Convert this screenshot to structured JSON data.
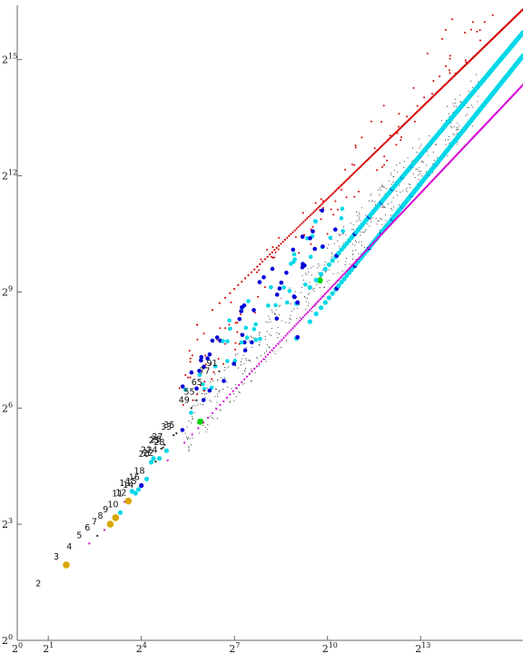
{
  "chart_data": {
    "type": "scatter",
    "title": "",
    "xlabel": "",
    "ylabel": "",
    "log_base": 2,
    "xlim": [
      0,
      16.3
    ],
    "ylim": [
      0,
      16.4
    ],
    "x_ticks": [
      {
        "exp": 0,
        "base": "2",
        "sup": "0"
      },
      {
        "exp": 1,
        "base": "2",
        "sup": "1"
      },
      {
        "exp": 4,
        "base": "2",
        "sup": "4"
      },
      {
        "exp": 7,
        "base": "2",
        "sup": "7"
      },
      {
        "exp": 10,
        "base": "2",
        "sup": "10"
      },
      {
        "exp": 13,
        "base": "2",
        "sup": "13"
      }
    ],
    "y_ticks": [
      {
        "exp": 0,
        "base": "2",
        "sup": "0"
      },
      {
        "exp": 3,
        "base": "2",
        "sup": "3"
      },
      {
        "exp": 6,
        "base": "2",
        "sup": "6"
      },
      {
        "exp": 9,
        "base": "2",
        "sup": "9"
      },
      {
        "exp": 12,
        "base": "2",
        "sup": "12"
      },
      {
        "exp": 15,
        "base": "2",
        "sup": "15"
      }
    ],
    "colors": {
      "red": "#d40000",
      "magenta": "#d400d4",
      "blue": "#0000d8",
      "cyan": "#00d8e8",
      "gold": "#d8a800",
      "green": "#00d800",
      "black": "#222222"
    },
    "lines": [
      {
        "color": "red",
        "from": [
          5.8,
          8.15
        ],
        "to": [
          16.3,
          16.3
        ],
        "marker": "dot"
      },
      {
        "color": "cyan",
        "from": [
          9.0,
          8.7
        ],
        "to": [
          16.3,
          15.7
        ],
        "marker": "circle"
      },
      {
        "color": "cyan",
        "from": [
          9.0,
          7.8
        ],
        "to": [
          16.3,
          15.1
        ],
        "marker": "circle"
      },
      {
        "color": "magenta",
        "from": [
          4.85,
          4.65
        ],
        "to": [
          16.3,
          14.35
        ],
        "marker": "dot"
      }
    ],
    "points": [
      {
        "label": "2",
        "x": 1.0,
        "y": 1.25,
        "color": "",
        "marker": "none"
      },
      {
        "label": "3",
        "x": 1.58,
        "y": 1.95,
        "color": "gold",
        "marker": "circle"
      },
      {
        "label": "4",
        "x": 2.0,
        "y": 2.2,
        "color": "",
        "marker": "none"
      },
      {
        "label": "5",
        "x": 2.32,
        "y": 2.5,
        "color": "magenta",
        "marker": "dot"
      },
      {
        "label": "6",
        "x": 2.58,
        "y": 2.7,
        "color": "black",
        "marker": "dot"
      },
      {
        "label": "7",
        "x": 2.81,
        "y": 2.85,
        "color": "magenta",
        "marker": "dot"
      },
      {
        "label": "8",
        "x": 3.0,
        "y": 3.0,
        "color": "gold",
        "marker": "circle"
      },
      {
        "label": "9",
        "x": 3.17,
        "y": 3.17,
        "color": "gold",
        "marker": "circle"
      },
      {
        "label": "10",
        "x": 3.32,
        "y": 3.3,
        "color": "cyan",
        "marker": "circle"
      },
      {
        "label": "11",
        "x": 3.46,
        "y": 3.58,
        "color": "magenta",
        "marker": "dot"
      },
      {
        "label": "12",
        "x": 3.58,
        "y": 3.6,
        "color": "gold",
        "marker": "circle"
      },
      {
        "label": "13",
        "x": 3.7,
        "y": 3.85,
        "color": "cyan",
        "marker": "circle"
      },
      {
        "label": "14",
        "x": 3.81,
        "y": 3.8,
        "color": "cyan",
        "marker": "circle"
      },
      {
        "label": "15",
        "x": 3.91,
        "y": 3.9,
        "color": "cyan",
        "marker": "circle"
      },
      {
        "label": "16",
        "x": 4.0,
        "y": 4.0,
        "color": "blue",
        "marker": "circle"
      },
      {
        "label": "18",
        "x": 4.17,
        "y": 4.17,
        "color": "cyan",
        "marker": "circle"
      },
      {
        "label": "20",
        "x": 4.32,
        "y": 4.6,
        "color": "cyan",
        "marker": "circle"
      },
      {
        "label": "21",
        "x": 4.39,
        "y": 4.7,
        "color": "cyan",
        "marker": "circle"
      },
      {
        "label": "22",
        "x": 4.46,
        "y": 4.62,
        "color": "black",
        "marker": "dot"
      },
      {
        "label": "24",
        "x": 4.58,
        "y": 4.7,
        "color": "cyan",
        "marker": "circle"
      },
      {
        "label": "25",
        "x": 4.64,
        "y": 4.95,
        "color": "black",
        "marker": "dot"
      },
      {
        "label": "26",
        "x": 4.7,
        "y": 4.98,
        "color": "black",
        "marker": "dot"
      },
      {
        "label": "27",
        "x": 4.75,
        "y": 5.05,
        "color": "black",
        "marker": "dot"
      },
      {
        "label": "28",
        "x": 4.81,
        "y": 4.9,
        "color": "cyan",
        "marker": "circle"
      },
      {
        "label": "33",
        "x": 5.04,
        "y": 5.3,
        "color": "black",
        "marker": "dot"
      },
      {
        "label": "35",
        "x": 5.13,
        "y": 5.35,
        "color": "black",
        "marker": "dot"
      },
      {
        "label": "49",
        "x": 5.61,
        "y": 6.0,
        "color": "black",
        "marker": "dot"
      },
      {
        "label": "55",
        "x": 5.78,
        "y": 6.2,
        "color": "black",
        "marker": "dot"
      },
      {
        "label": "65",
        "x": 6.02,
        "y": 6.45,
        "color": "red",
        "marker": "dot"
      },
      {
        "label": "77",
        "x": 6.27,
        "y": 6.75,
        "color": "red",
        "marker": "dot"
      },
      {
        "label": "91",
        "x": 6.51,
        "y": 6.95,
        "color": "black",
        "marker": "dot"
      }
    ]
  }
}
